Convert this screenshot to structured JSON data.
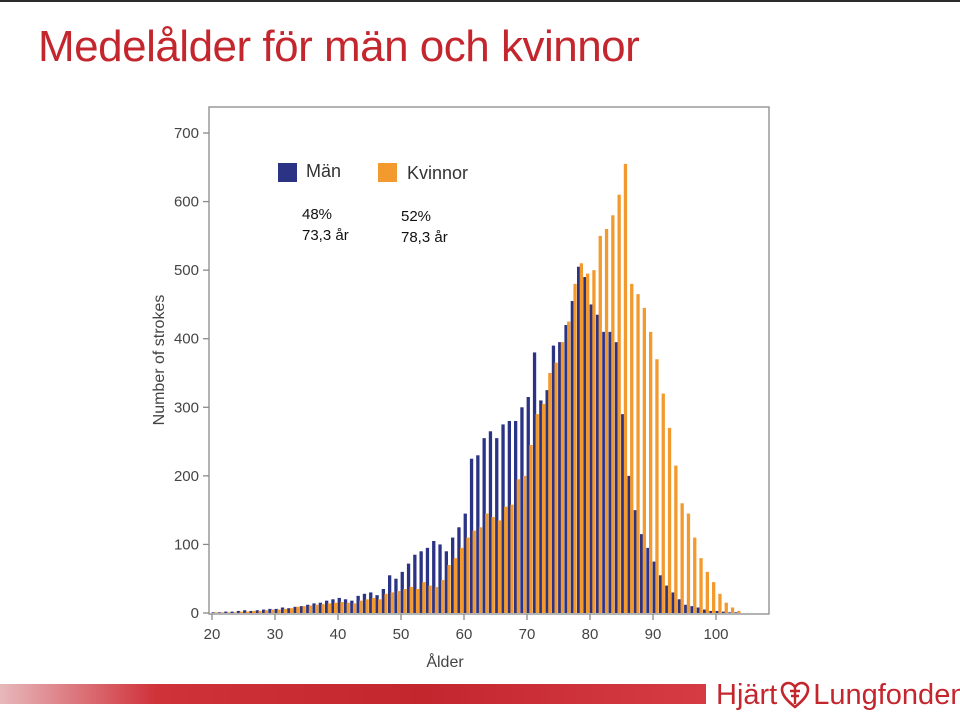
{
  "slide": {
    "title": "Medelålder för män och kvinnor"
  },
  "brand": {
    "part1": "Hjärt",
    "part2": "Lungfonden",
    "icon": "heart-cross-logo-icon",
    "color": "#c4262e"
  },
  "chart_data": {
    "type": "bar",
    "xlabel": "Ålder",
    "ylabel": "Number of strokes",
    "xlim": [
      20,
      105
    ],
    "ylim": [
      0,
      700
    ],
    "xticks": [
      20,
      30,
      40,
      50,
      60,
      70,
      80,
      90,
      100
    ],
    "yticks": [
      0,
      100,
      200,
      300,
      400,
      500,
      600,
      700
    ],
    "grid": false,
    "legend_position": "top-left",
    "x": [
      20,
      21,
      22,
      23,
      24,
      25,
      26,
      27,
      28,
      29,
      30,
      31,
      32,
      33,
      34,
      35,
      36,
      37,
      38,
      39,
      40,
      41,
      42,
      43,
      44,
      45,
      46,
      47,
      48,
      49,
      50,
      51,
      52,
      53,
      54,
      55,
      56,
      57,
      58,
      59,
      60,
      61,
      62,
      63,
      64,
      65,
      66,
      67,
      68,
      69,
      70,
      71,
      72,
      73,
      74,
      75,
      76,
      77,
      78,
      79,
      80,
      81,
      82,
      83,
      84,
      85,
      86,
      87,
      88,
      89,
      90,
      91,
      92,
      93,
      94,
      95,
      96,
      97,
      98,
      99,
      100,
      101,
      102,
      103
    ],
    "series": [
      {
        "name": "Män",
        "color": "#2b3384",
        "values": [
          1,
          1,
          2,
          2,
          3,
          4,
          3,
          4,
          5,
          6,
          6,
          8,
          7,
          9,
          10,
          12,
          14,
          15,
          18,
          20,
          22,
          20,
          18,
          25,
          28,
          30,
          26,
          35,
          55,
          50,
          60,
          72,
          85,
          90,
          95,
          105,
          100,
          90,
          110,
          125,
          145,
          225,
          230,
          255,
          265,
          255,
          275,
          280,
          280,
          300,
          315,
          380,
          310,
          325,
          390,
          395,
          420,
          455,
          505,
          490,
          450,
          435,
          410,
          410,
          395,
          290,
          200,
          150,
          115,
          95,
          75,
          55,
          40,
          30,
          20,
          12,
          10,
          8,
          5,
          3,
          3,
          2,
          1,
          1
        ]
      },
      {
        "name": "Kvinnor",
        "color": "#f29a2e",
        "values": [
          1,
          1,
          1,
          1,
          2,
          2,
          3,
          3,
          4,
          5,
          5,
          6,
          7,
          9,
          10,
          11,
          12,
          13,
          14,
          15,
          16,
          15,
          14,
          18,
          20,
          22,
          20,
          28,
          30,
          32,
          35,
          38,
          35,
          45,
          40,
          38,
          48,
          70,
          80,
          95,
          110,
          120,
          125,
          145,
          140,
          135,
          155,
          158,
          195,
          200,
          245,
          290,
          305,
          350,
          365,
          395,
          425,
          480,
          510,
          495,
          500,
          550,
          560,
          580,
          610,
          655,
          480,
          465,
          445,
          410,
          370,
          320,
          270,
          215,
          160,
          145,
          110,
          80,
          60,
          45,
          28,
          15,
          8,
          3
        ]
      }
    ],
    "annotations": [
      {
        "series": "Män",
        "share": "48%",
        "mean_age": "73,3 år"
      },
      {
        "series": "Kvinnor",
        "share": "52%",
        "mean_age": "78,3 år"
      }
    ]
  }
}
